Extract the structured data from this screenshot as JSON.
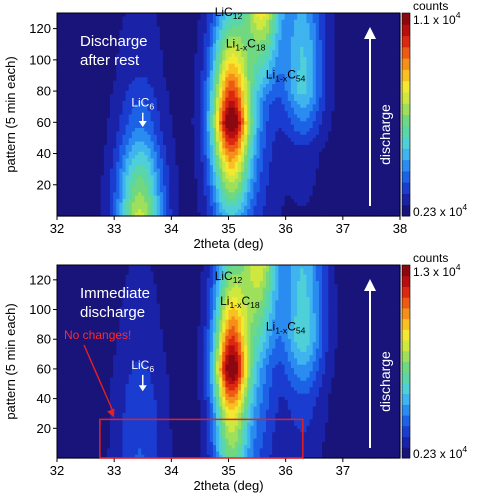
{
  "chart_data": [
    {
      "type": "heatmap",
      "xlabel": "2theta (deg)",
      "ylabel": "pattern (5 min each)",
      "xlim": [
        32,
        38
      ],
      "ylim": [
        0,
        130
      ],
      "x_ticks": [
        32,
        33,
        34,
        35,
        36,
        37,
        38
      ],
      "y_ticks": [
        20,
        40,
        60,
        80,
        100,
        120
      ],
      "panel_text_lines": [
        "Discharge",
        "after rest"
      ],
      "colorbar": {
        "title": "counts",
        "max_label": "1.1 x 10",
        "max_exp": "4",
        "min_label": "0.23 x 10",
        "min_exp": "4"
      },
      "arrow_label": "discharge",
      "peak_labels": [
        {
          "base": "LiC",
          "sub": "12",
          "x": 35.0,
          "y": 128
        },
        {
          "base": "Li",
          "sub": "1-x",
          "base2": "C",
          "sub2": "18",
          "x": 35.3,
          "y": 108
        },
        {
          "base": "Li",
          "sub": "1-x",
          "base2": "C",
          "sub2": "54",
          "x": 36.0,
          "y": 88
        },
        {
          "base": "LiC",
          "sub": "6",
          "x": 33.5,
          "y": 70,
          "arrow_to_y": 57
        }
      ],
      "peaks": [
        {
          "name": "LiC6",
          "x0": 33.45,
          "sx": 0.28,
          "amps": [
            [
              0,
              0.55
            ],
            [
              25,
              0.42
            ],
            [
              55,
              0.2
            ],
            [
              90,
              0.08
            ],
            [
              130,
              0.04
            ]
          ]
        },
        {
          "name": "LiC12",
          "x0": 35.05,
          "sx": 0.25,
          "amps": [
            [
              0,
              0.3
            ],
            [
              30,
              0.62
            ],
            [
              60,
              1.0
            ],
            [
              90,
              0.7
            ],
            [
              130,
              0.3
            ]
          ]
        },
        {
          "name": "Li1-xC18",
          "x0": 35.6,
          "sx": 0.22,
          "amps": [
            [
              0,
              0.05
            ],
            [
              70,
              0.1
            ],
            [
              110,
              0.4
            ],
            [
              130,
              0.58
            ]
          ]
        },
        {
          "name": "Li1-xC54",
          "x0": 36.3,
          "sx": 0.25,
          "amps": [
            [
              0,
              0.02
            ],
            [
              40,
              0.05
            ],
            [
              80,
              0.32
            ],
            [
              110,
              0.3
            ],
            [
              130,
              0.25
            ]
          ]
        }
      ],
      "baseline": 0.03
    },
    {
      "type": "heatmap",
      "xlabel": "2theta (deg)",
      "ylabel": "pattern (5 min each)",
      "xlim": [
        32,
        38
      ],
      "ylim": [
        0,
        130
      ],
      "x_ticks": [
        32,
        33,
        34,
        35,
        36,
        37
      ],
      "y_ticks": [
        20,
        40,
        60,
        80,
        100,
        120
      ],
      "panel_text_lines": [
        "Immediate",
        "discharge"
      ],
      "colorbar": {
        "title": "counts",
        "max_label": "1.3 x 10",
        "max_exp": "4",
        "min_label": "0.23 x 10",
        "min_exp": "4"
      },
      "arrow_label": "discharge",
      "peak_labels": [
        {
          "base": "LiC",
          "sub": "12",
          "x": 35.0,
          "y": 120
        },
        {
          "base": "Li",
          "sub": "1-x",
          "base2": "C",
          "sub2": "18",
          "x": 35.2,
          "y": 103
        },
        {
          "base": "Li",
          "sub": "1-x",
          "base2": "C",
          "sub2": "54",
          "x": 36.0,
          "y": 86
        },
        {
          "base": "LiC",
          "sub": "6",
          "x": 33.5,
          "y": 60,
          "arrow_to_y": 45
        }
      ],
      "annotation": {
        "text": "No changes!",
        "box_x": [
          32.75,
          36.3
        ],
        "box_y": [
          0,
          26
        ]
      },
      "peaks": [
        {
          "name": "LiC6",
          "x0": 33.45,
          "sx": 0.3,
          "amps": [
            [
              0,
              0.14
            ],
            [
              40,
              0.12
            ],
            [
              80,
              0.06
            ],
            [
              130,
              0.03
            ]
          ]
        },
        {
          "name": "LiC12",
          "x0": 35.05,
          "sx": 0.22,
          "amps": [
            [
              0,
              0.42
            ],
            [
              30,
              0.6
            ],
            [
              60,
              1.0
            ],
            [
              90,
              0.7
            ],
            [
              130,
              0.36
            ]
          ]
        },
        {
          "name": "Li1-xC18",
          "x0": 35.55,
          "sx": 0.22,
          "amps": [
            [
              0,
              0.1
            ],
            [
              60,
              0.18
            ],
            [
              100,
              0.4
            ],
            [
              130,
              0.55
            ]
          ]
        },
        {
          "name": "Li1-xC54",
          "x0": 36.3,
          "sx": 0.26,
          "amps": [
            [
              0,
              0.05
            ],
            [
              40,
              0.12
            ],
            [
              80,
              0.35
            ],
            [
              130,
              0.3
            ]
          ]
        }
      ],
      "baseline": 0.03
    }
  ]
}
